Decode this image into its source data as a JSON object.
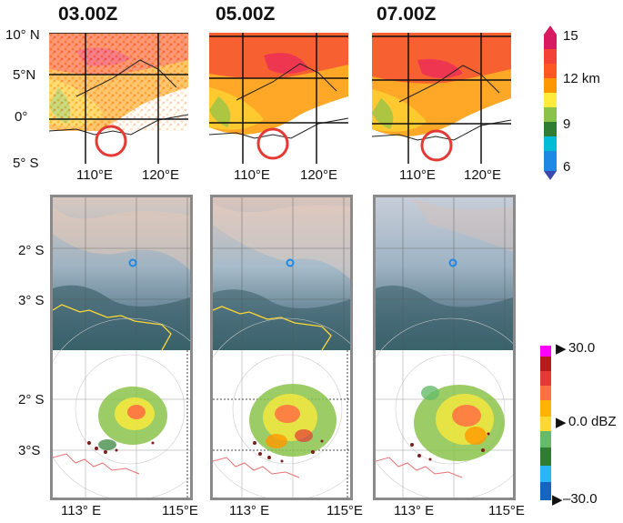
{
  "times": [
    "03.00Z",
    "05.00Z",
    "07.00Z"
  ],
  "top_axis": {
    "lat_labels": [
      "10° N",
      "5°N",
      "0°",
      "5° S"
    ],
    "lon_labels": [
      "110°E",
      "120°E"
    ]
  },
  "cloud_top_colorbar": {
    "labels": [
      "15",
      "12 km",
      "9",
      "6"
    ],
    "colors": [
      "#d81b60",
      "#f44336",
      "#ff9800",
      "#ffeb3b",
      "#8bc34a",
      "#2e7d32",
      "#00bcd4",
      "#1e88e5",
      "#3949ab"
    ]
  },
  "bottom_axis": {
    "lat_labels": [
      "2° S",
      "3° S"
    ],
    "lat_labels_radar": [
      "2° S",
      "3°S"
    ],
    "lon_labels": [
      "113° E",
      "115°E"
    ]
  },
  "radar_colorbar": {
    "labels": [
      "30.0",
      "0.0 dBZ",
      "–30.0"
    ],
    "colors": [
      "#ff00ff",
      "#b71c1c",
      "#e53935",
      "#ff7043",
      "#ffb300",
      "#fdd835",
      "#66bb6a",
      "#2e7d32",
      "#29b6f6",
      "#1565c0"
    ]
  }
}
